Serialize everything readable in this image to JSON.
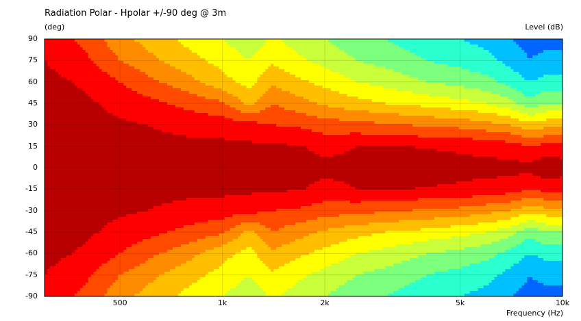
{
  "chart_data": {
    "type": "heatmap",
    "title": "Radiation Polar - Hpolar +/-90 deg @ 3m",
    "ylabel": "(deg)",
    "xlabel": "Frequency  (Hz)",
    "colorbar_label": "Level  (dB)",
    "x_scale": "log",
    "xlim": [
      300,
      10000
    ],
    "ylim": [
      -90,
      90
    ],
    "x_tick_labels": [
      "500",
      "1k",
      "2k",
      "5k",
      "10k"
    ],
    "x_ticks": [
      500,
      1000,
      2000,
      5000,
      10000
    ],
    "y_ticks": [
      90,
      75,
      60,
      45,
      30,
      15,
      0,
      -15,
      -30,
      -45,
      -60,
      -75,
      -90
    ],
    "grid": true,
    "level_bands_dB": [
      0,
      -3,
      -6,
      -9,
      -12,
      -15,
      -18,
      -21,
      -24,
      -27,
      -30
    ],
    "band_colors": [
      "#b80000",
      "#ff0000",
      "#ff4a00",
      "#ff8c00",
      "#ffbf00",
      "#ffff00",
      "#c8ff3a",
      "#7cff7c",
      "#2affd0",
      "#00c0ff",
      "#0066ff"
    ],
    "frequencies_Hz": [
      300,
      400,
      500,
      600,
      800,
      1000,
      1200,
      1400,
      1700,
      2000,
      2500,
      3000,
      3500,
      4000,
      5000,
      6000,
      7000,
      8000,
      9000,
      10000
    ],
    "level_at_angle_dB": [
      {
        "angle": 0,
        "values": [
          -2,
          -2,
          -2,
          -2,
          -2,
          -2,
          -2,
          -2,
          -2,
          -2,
          -2,
          -2,
          -0.5,
          -1.5,
          -2,
          -2,
          -2,
          -2,
          -0.5,
          -1.5
        ]
      },
      {
        "angle": 15,
        "values": [
          -2,
          -2,
          -2,
          -2,
          -2.2,
          -2.2,
          -2.4,
          -2.6,
          -2.8,
          -4,
          -3,
          -3,
          -3,
          -3.2,
          -3.5,
          -4,
          -4.5,
          -6,
          -5,
          -5
        ]
      },
      {
        "angle": 30,
        "values": [
          -2,
          -2,
          -2.5,
          -3,
          -4,
          -4.5,
          -5,
          -6,
          -6.5,
          -7.5,
          -8,
          -8.5,
          -9,
          -9.5,
          -10,
          -11,
          -12,
          -14,
          -13,
          -13
        ]
      },
      {
        "angle": 45,
        "values": [
          -2,
          -2.5,
          -4,
          -5,
          -7,
          -8.5,
          -13,
          -9,
          -11,
          -12.5,
          -14,
          -15,
          -15.5,
          -16,
          -17,
          -18,
          -20,
          -23,
          -21,
          -21
        ]
      },
      {
        "angle": 60,
        "values": [
          -2,
          -3.5,
          -6,
          -8,
          -11,
          -14,
          -16,
          -12.5,
          -14.5,
          -16,
          -18,
          -19,
          -20,
          -21,
          -22,
          -23,
          -25,
          -27,
          -26,
          -26
        ]
      },
      {
        "angle": 75,
        "values": [
          -3,
          -5.5,
          -9,
          -11,
          -14,
          -16,
          -18,
          -15.5,
          -17.5,
          -19,
          -21,
          -22,
          -23,
          -24,
          -25,
          -26,
          -28,
          -30,
          -29,
          -29
        ]
      },
      {
        "angle": 90,
        "values": [
          -4,
          -7,
          -11,
          -13,
          -16,
          -18,
          -20,
          -17.5,
          -19.5,
          -21,
          -23,
          -24,
          -25,
          -26,
          -27,
          -28,
          -30,
          -31,
          -31,
          -31
        ]
      }
    ]
  }
}
